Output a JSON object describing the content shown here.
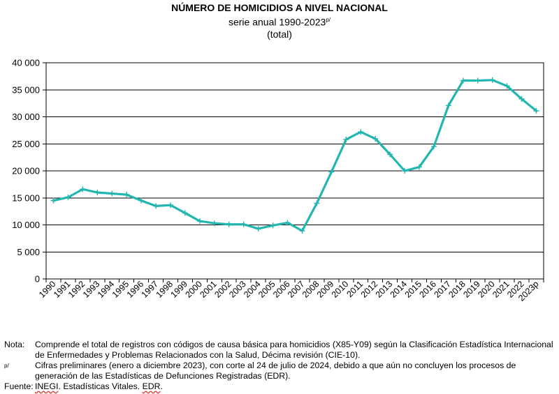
{
  "header": {
    "title": "NÚMERO DE HOMICIDIOS A NIVEL NACIONAL",
    "subtitle": "serie anual 1990-2023",
    "subtitle_sup": "p/",
    "unit": "(total)"
  },
  "colors": {
    "line": "#21b6b0",
    "grid": "#000000",
    "axis": "#000000"
  },
  "chart_data": {
    "type": "line",
    "categories": [
      "1990",
      "1991",
      "1992",
      "1993",
      "1994",
      "1995",
      "1996",
      "1997",
      "1998",
      "1999",
      "2000",
      "2001",
      "2002",
      "2003",
      "2004",
      "2005",
      "2006",
      "2007",
      "2008",
      "2009",
      "2010",
      "2011",
      "2012",
      "2013",
      "2014",
      "2015",
      "2016",
      "2017",
      "2018",
      "2019",
      "2020",
      "2021",
      "2022",
      "2023p"
    ],
    "series": [
      {
        "values": [
          14500,
          15100,
          16600,
          16000,
          15800,
          15600,
          14500,
          13500,
          13650,
          12200,
          10700,
          10300,
          10100,
          10100,
          9300,
          9900,
          10400,
          8900,
          14000,
          19800,
          25800,
          27200,
          25950,
          23050,
          20000,
          20700,
          24500,
          32100,
          36700,
          36700,
          36800,
          35700,
          33300,
          31100
        ]
      }
    ],
    "ylim": [
      0,
      40000
    ],
    "yticks": [
      0,
      5000,
      10000,
      15000,
      20000,
      25000,
      30000,
      35000,
      40000
    ],
    "ytick_labels": [
      "0",
      "5 000",
      "10 000",
      "15 000",
      "20 000",
      "25 000",
      "30 000",
      "35 000",
      "40 000"
    ],
    "grid": true,
    "marker": "plus"
  },
  "notes": {
    "nota_key": "Nota:",
    "nota_text": "Comprende el total de registros con códigos de causa básica para homicidios (X85-Y09) según la Clasificación Estadística Internacional de Enfermedades y Problemas Relacionados con la Salud, Décima revisión (CIE-10).",
    "prelim_key": "p/",
    "prelim_text": "Cifras preliminares (enero a diciembre 2023), con corte al 24 de julio de 2024, debido a que aún no concluyen los procesos de generación de las Estadísticas de Defunciones Registradas (EDR).",
    "fuente_key": "Fuente:",
    "fuente_inegi": "INEGI",
    "fuente_mid": ". Estadísticas Vitales. ",
    "fuente_edr": "EDR",
    "fuente_end": "."
  }
}
